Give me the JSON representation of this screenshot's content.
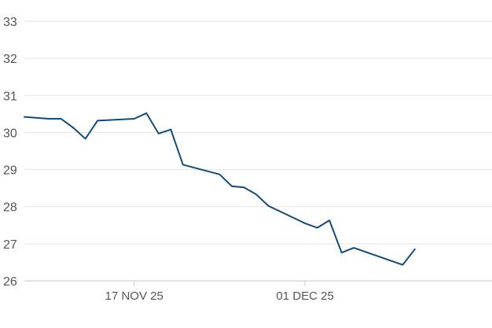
{
  "chart_data": {
    "type": "line",
    "title": "",
    "xlabel": "",
    "ylabel": "",
    "x_range": [
      "2025-11-08",
      "2025-12-16"
    ],
    "ylim": [
      26,
      33
    ],
    "y_ticks": [
      26,
      27,
      28,
      29,
      30,
      31,
      32,
      33
    ],
    "x_ticks": [
      {
        "date": "2025-11-17",
        "label": "17 NOV 25"
      },
      {
        "date": "2025-12-01",
        "label": "01 DEC 25"
      }
    ],
    "grid": "horizontal",
    "legend": "none",
    "colors": {
      "line": "#0f4c81",
      "grid": "#e3e3e3",
      "axis": "#c8c8c8",
      "tick_label": "#555555"
    },
    "series": [
      {
        "points": [
          {
            "x": "2025-11-08",
            "y": 30.42
          },
          {
            "x": "2025-11-10",
            "y": 30.37
          },
          {
            "x": "2025-11-11",
            "y": 30.37
          },
          {
            "x": "2025-11-12",
            "y": 30.13
          },
          {
            "x": "2025-11-13",
            "y": 29.83
          },
          {
            "x": "2025-11-14",
            "y": 30.32
          },
          {
            "x": "2025-11-17",
            "y": 30.37
          },
          {
            "x": "2025-11-18",
            "y": 30.52
          },
          {
            "x": "2025-11-19",
            "y": 29.97
          },
          {
            "x": "2025-11-20",
            "y": 30.08
          },
          {
            "x": "2025-11-21",
            "y": 29.13
          },
          {
            "x": "2025-11-24",
            "y": 28.87
          },
          {
            "x": "2025-11-25",
            "y": 28.55
          },
          {
            "x": "2025-11-26",
            "y": 28.52
          },
          {
            "x": "2025-11-27",
            "y": 28.33
          },
          {
            "x": "2025-11-28",
            "y": 28.02
          },
          {
            "x": "2025-12-01",
            "y": 27.55
          },
          {
            "x": "2025-12-02",
            "y": 27.43
          },
          {
            "x": "2025-12-03",
            "y": 27.63
          },
          {
            "x": "2025-12-04",
            "y": 26.76
          },
          {
            "x": "2025-12-05",
            "y": 26.89
          },
          {
            "x": "2025-12-09",
            "y": 26.43
          },
          {
            "x": "2025-12-10",
            "y": 26.85
          }
        ]
      }
    ]
  }
}
